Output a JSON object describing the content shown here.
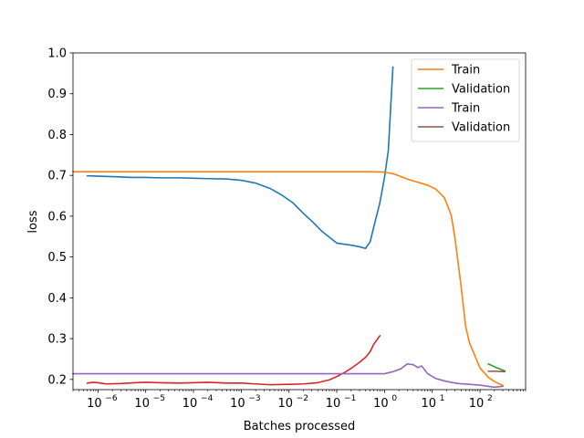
{
  "chart_data": {
    "type": "line",
    "title": "",
    "xlabel": "Batches processed",
    "ylabel": "loss",
    "xscale": "log",
    "xlim": [
      3e-07,
      900
    ],
    "ylim": [
      0.175,
      1.0
    ],
    "grid": false,
    "legend_position": "top-right",
    "xticks": [
      {
        "value": 1e-06,
        "base": "10",
        "exp": "−6"
      },
      {
        "value": 1e-05,
        "base": "10",
        "exp": "−5"
      },
      {
        "value": 0.0001,
        "base": "10",
        "exp": "−4"
      },
      {
        "value": 0.001,
        "base": "10",
        "exp": "−3"
      },
      {
        "value": 0.01,
        "base": "10",
        "exp": "−2"
      },
      {
        "value": 0.1,
        "base": "10",
        "exp": "−1"
      },
      {
        "value": 1,
        "base": "10",
        "exp": "0"
      },
      {
        "value": 10,
        "base": "10",
        "exp": "1"
      },
      {
        "value": 100,
        "base": "10",
        "exp": "2"
      }
    ],
    "yticks": [
      0.2,
      0.3,
      0.4,
      0.5,
      0.6,
      0.7,
      0.8,
      0.9,
      1.0
    ],
    "ytick_labels": [
      "0.2",
      "0.3",
      "0.4",
      "0.5",
      "0.6",
      "0.7",
      "0.8",
      "0.9",
      "1.0"
    ],
    "series": [
      {
        "name": "",
        "legend": false,
        "color": "#1f77b4",
        "points": [
          [
            6e-07,
            0.699
          ],
          [
            1e-06,
            0.698
          ],
          [
            2e-06,
            0.697
          ],
          [
            5e-06,
            0.695
          ],
          [
            1e-05,
            0.695
          ],
          [
            2e-05,
            0.694
          ],
          [
            5e-05,
            0.694
          ],
          [
            0.0001,
            0.693
          ],
          [
            0.0002,
            0.692
          ],
          [
            0.0005,
            0.691
          ],
          [
            0.001,
            0.688
          ],
          [
            0.002,
            0.681
          ],
          [
            0.004,
            0.668
          ],
          [
            0.007,
            0.652
          ],
          [
            0.012,
            0.633
          ],
          [
            0.02,
            0.607
          ],
          [
            0.03,
            0.588
          ],
          [
            0.05,
            0.562
          ],
          [
            0.1,
            0.534
          ],
          [
            0.2,
            0.529
          ],
          [
            0.3,
            0.525
          ],
          [
            0.4,
            0.521
          ],
          [
            0.5,
            0.537
          ],
          [
            0.6,
            0.575
          ],
          [
            0.8,
            0.633
          ],
          [
            1.0,
            0.695
          ],
          [
            1.2,
            0.76
          ],
          [
            1.5,
            0.965
          ]
        ]
      },
      {
        "name": "Train",
        "legend": true,
        "color": "#ff7f0e",
        "points": [
          [
            3e-07,
            0.709
          ],
          [
            1e-06,
            0.709
          ],
          [
            0.0001,
            0.709
          ],
          [
            0.01,
            0.709
          ],
          [
            0.1,
            0.709
          ],
          [
            0.5,
            0.709
          ],
          [
            1.0,
            0.708
          ],
          [
            1.5,
            0.704
          ],
          [
            2,
            0.699
          ],
          [
            3,
            0.691
          ],
          [
            5,
            0.683
          ],
          [
            8,
            0.676
          ],
          [
            12,
            0.666
          ],
          [
            18,
            0.645
          ],
          [
            25,
            0.602
          ],
          [
            30,
            0.545
          ],
          [
            40,
            0.43
          ],
          [
            50,
            0.33
          ],
          [
            60,
            0.29
          ],
          [
            80,
            0.255
          ],
          [
            100,
            0.228
          ],
          [
            150,
            0.205
          ],
          [
            200,
            0.195
          ],
          [
            300,
            0.185
          ]
        ]
      },
      {
        "name": "Validation",
        "legend": true,
        "color": "#2ca02c",
        "points": [
          [
            150,
            0.238
          ],
          [
            220,
            0.229
          ],
          [
            330,
            0.221
          ]
        ]
      },
      {
        "name": "",
        "legend": false,
        "color": "#d62728",
        "points": [
          [
            6e-07,
            0.191
          ],
          [
            8e-07,
            0.193
          ],
          [
            1e-06,
            0.192
          ],
          [
            1.5e-06,
            0.189
          ],
          [
            3e-06,
            0.19
          ],
          [
            6e-06,
            0.192
          ],
          [
            1e-05,
            0.193
          ],
          [
            2e-05,
            0.192
          ],
          [
            5e-05,
            0.191
          ],
          [
            0.0001,
            0.192
          ],
          [
            0.0002,
            0.193
          ],
          [
            0.0005,
            0.191
          ],
          [
            0.001,
            0.191
          ],
          [
            0.002,
            0.189
          ],
          [
            0.004,
            0.187
          ],
          [
            0.01,
            0.188
          ],
          [
            0.02,
            0.189
          ],
          [
            0.04,
            0.192
          ],
          [
            0.07,
            0.199
          ],
          [
            0.1,
            0.207
          ],
          [
            0.15,
            0.218
          ],
          [
            0.2,
            0.227
          ],
          [
            0.3,
            0.242
          ],
          [
            0.4,
            0.254
          ],
          [
            0.5,
            0.268
          ],
          [
            0.6,
            0.287
          ],
          [
            0.8,
            0.307
          ]
        ]
      },
      {
        "name": "Train",
        "legend": true,
        "color": "#9467bd",
        "points": [
          [
            3e-07,
            0.214
          ],
          [
            1e-06,
            0.214
          ],
          [
            0.0001,
            0.214
          ],
          [
            0.01,
            0.214
          ],
          [
            0.1,
            0.214
          ],
          [
            1.0,
            0.214
          ],
          [
            1.5,
            0.219
          ],
          [
            2.2,
            0.226
          ],
          [
            3,
            0.238
          ],
          [
            4,
            0.236
          ],
          [
            5,
            0.229
          ],
          [
            6,
            0.233
          ],
          [
            8,
            0.214
          ],
          [
            12,
            0.202
          ],
          [
            20,
            0.195
          ],
          [
            35,
            0.19
          ],
          [
            60,
            0.188
          ],
          [
            100,
            0.186
          ],
          [
            150,
            0.183
          ],
          [
            200,
            0.181
          ],
          [
            300,
            0.183
          ]
        ]
      },
      {
        "name": "Validation",
        "legend": true,
        "color": "#8c564b",
        "points": [
          [
            150,
            0.22
          ],
          [
            220,
            0.22
          ],
          [
            330,
            0.219
          ]
        ]
      }
    ]
  }
}
